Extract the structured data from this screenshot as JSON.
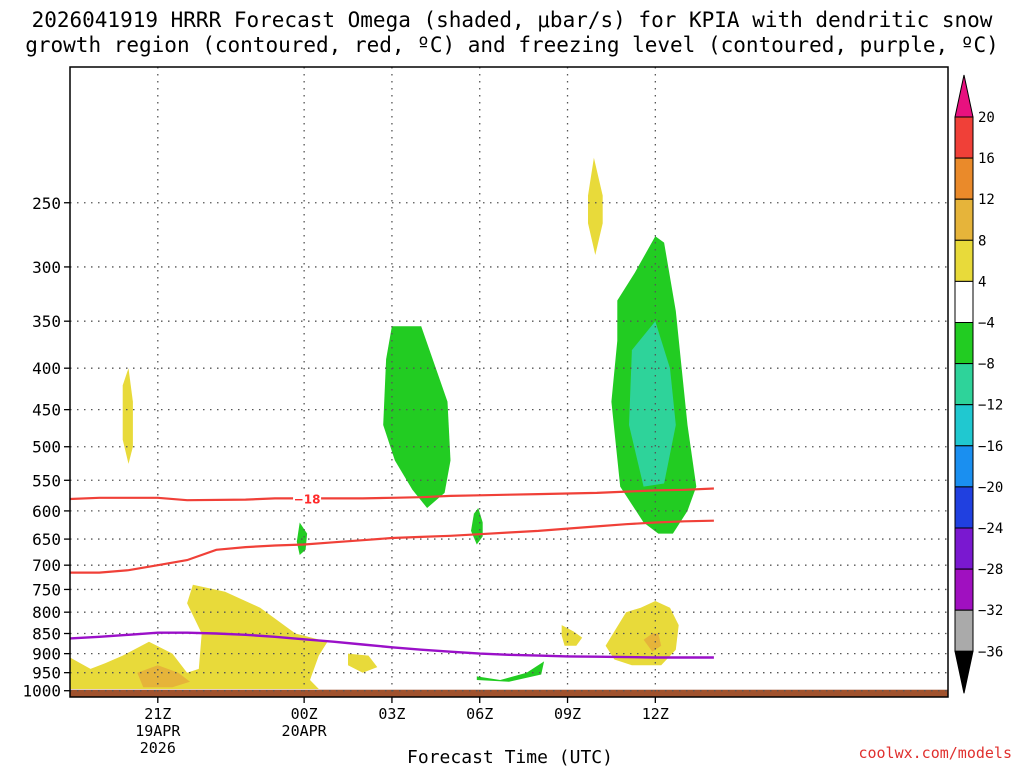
{
  "chart_data": {
    "type": "time-height-section",
    "title_line1": "2026041919 HRRR Forecast Omega (shaded, μbar/s) for KPIA with dendritic snow",
    "title_line2": "growth region (contoured, red, ºC) and freezing level (contoured, purple, ºC)",
    "xlabel": "Forecast Time (UTC)",
    "credit": "coolwx.com/models",
    "x_domain_hours": [
      -2,
      28
    ],
    "x_ticks": [
      {
        "hour": 1,
        "lines": [
          "21Z",
          "19APR",
          "2026"
        ]
      },
      {
        "hour": 6,
        "lines": [
          "00Z",
          "20APR"
        ]
      },
      {
        "hour": 9,
        "lines": [
          "03Z"
        ]
      },
      {
        "hour": 12,
        "lines": [
          "06Z"
        ]
      },
      {
        "hour": 15,
        "lines": [
          "09Z"
        ]
      },
      {
        "hour": 18,
        "lines": [
          "12Z"
        ]
      }
    ],
    "y_axis": {
      "units": "hPa",
      "top": 170,
      "bottom": 1018,
      "ticks": [
        250,
        300,
        350,
        400,
        450,
        500,
        550,
        600,
        650,
        700,
        750,
        800,
        850,
        900,
        950,
        1000
      ]
    },
    "colorbar": {
      "labels": [
        "20",
        "16",
        "12",
        "8",
        "4",
        "−4",
        "−8",
        "−12",
        "−16",
        "−20",
        "−24",
        "−28",
        "−32",
        "−36"
      ],
      "bins": [
        {
          "lo": 20,
          "hi": null,
          "color": "#e8117f"
        },
        {
          "lo": 16,
          "hi": 20,
          "color": "#f04038"
        },
        {
          "lo": 12,
          "hi": 16,
          "color": "#ea8a2a"
        },
        {
          "lo": 8,
          "hi": 12,
          "color": "#e6b43a"
        },
        {
          "lo": 4,
          "hi": 8,
          "color": "#e8da3a"
        },
        {
          "lo": -4,
          "hi": 4,
          "color": "#ffffff"
        },
        {
          "lo": -8,
          "hi": -4,
          "color": "#22cc22"
        },
        {
          "lo": -12,
          "hi": -8,
          "color": "#2ed39a"
        },
        {
          "lo": -16,
          "hi": -12,
          "color": "#20c8d0"
        },
        {
          "lo": -20,
          "hi": -16,
          "color": "#1a8ff0"
        },
        {
          "lo": -24,
          "hi": -20,
          "color": "#2040e0"
        },
        {
          "lo": -28,
          "hi": -24,
          "color": "#7a18d0"
        },
        {
          "lo": -32,
          "hi": -28,
          "color": "#a010c0"
        },
        {
          "lo": -36,
          "hi": -32,
          "color": "#aaaaaa"
        },
        {
          "lo": null,
          "hi": -36,
          "color": "#000000"
        }
      ]
    },
    "omega_regions": [
      {
        "name": "upward-motion-1",
        "color": "#e8da3a",
        "points": [
          [
            0,
            400
          ],
          [
            0.15,
            440
          ],
          [
            0.15,
            500
          ],
          [
            0,
            525
          ],
          [
            -0.2,
            490
          ],
          [
            -0.2,
            420
          ]
        ]
      },
      {
        "name": "upward-motion-2",
        "color": "#e8da3a",
        "points": [
          [
            15.9,
            220
          ],
          [
            16.2,
            245
          ],
          [
            16.2,
            265
          ],
          [
            15.95,
            290
          ],
          [
            15.7,
            265
          ],
          [
            15.7,
            245
          ]
        ]
      },
      {
        "name": "weak-ascent-1",
        "color": "#e8da3a",
        "points": [
          [
            -2,
            910
          ],
          [
            -1.3,
            940
          ],
          [
            -0.8,
            925
          ],
          [
            -0.2,
            905
          ],
          [
            0.7,
            870
          ],
          [
            1.5,
            900
          ],
          [
            2,
            950
          ],
          [
            2.4,
            940
          ],
          [
            2.5,
            850
          ],
          [
            2,
            780
          ],
          [
            2.2,
            740
          ],
          [
            3.3,
            755
          ],
          [
            4.5,
            790
          ],
          [
            5.7,
            850
          ],
          [
            6.8,
            870
          ],
          [
            6.5,
            905
          ],
          [
            6.2,
            970
          ],
          [
            6.5,
            995
          ],
          [
            -2,
            995
          ]
        ]
      },
      {
        "name": "weak-ascent-2",
        "color": "#e6b43a",
        "points": [
          [
            0.3,
            950
          ],
          [
            1,
            930
          ],
          [
            1.7,
            950
          ],
          [
            2.1,
            975
          ],
          [
            1.5,
            990
          ],
          [
            0.5,
            990
          ]
        ]
      },
      {
        "name": "weak-ascent-3",
        "color": "#e8da3a",
        "points": [
          [
            7.5,
            900
          ],
          [
            8.2,
            905
          ],
          [
            8.5,
            935
          ],
          [
            8,
            950
          ],
          [
            7.5,
            930
          ]
        ]
      },
      {
        "name": "weak-ascent-4",
        "color": "#e8da3a",
        "points": [
          [
            14.8,
            830
          ],
          [
            15.2,
            845
          ],
          [
            15.5,
            860
          ],
          [
            15.3,
            880
          ],
          [
            14.9,
            880
          ],
          [
            14.8,
            855
          ]
        ]
      },
      {
        "name": "weak-ascent-5",
        "color": "#e8da3a",
        "points": [
          [
            16.3,
            880
          ],
          [
            17,
            800
          ],
          [
            17.5,
            790
          ],
          [
            18,
            775
          ],
          [
            18.5,
            790
          ],
          [
            18.8,
            830
          ],
          [
            18.7,
            890
          ],
          [
            18.2,
            930
          ],
          [
            17.2,
            930
          ],
          [
            16.6,
            915
          ]
        ]
      },
      {
        "name": "weak-ascent-6",
        "color": "#e6b43a",
        "points": [
          [
            17.6,
            865
          ],
          [
            17.9,
            850
          ],
          [
            18.1,
            850
          ],
          [
            18.2,
            880
          ],
          [
            17.9,
            895
          ]
        ]
      },
      {
        "name": "descent-1",
        "color": "#22cc22",
        "points": [
          [
            9,
            355
          ],
          [
            10,
            355
          ],
          [
            10.9,
            440
          ],
          [
            11,
            520
          ],
          [
            10.8,
            570
          ],
          [
            10.2,
            595
          ],
          [
            9.7,
            565
          ],
          [
            9.1,
            520
          ],
          [
            8.7,
            470
          ],
          [
            8.8,
            390
          ]
        ]
      },
      {
        "name": "descent-2",
        "color": "#22cc22",
        "points": [
          [
            11.95,
            595
          ],
          [
            12.1,
            620
          ],
          [
            12.1,
            645
          ],
          [
            11.9,
            660
          ],
          [
            11.7,
            635
          ],
          [
            11.8,
            605
          ]
        ]
      },
      {
        "name": "descent-3",
        "color": "#22cc22",
        "points": [
          [
            5.85,
            620
          ],
          [
            6.1,
            640
          ],
          [
            6.05,
            670
          ],
          [
            5.85,
            680
          ],
          [
            5.75,
            655
          ]
        ]
      },
      {
        "name": "descent-4",
        "color": "#22cc22",
        "points": [
          [
            11.9,
            960
          ],
          [
            12.7,
            970
          ],
          [
            13.6,
            950
          ],
          [
            14.2,
            920
          ],
          [
            14.1,
            955
          ],
          [
            13,
            975
          ],
          [
            11.9,
            970
          ]
        ]
      },
      {
        "name": "descent-5",
        "color": "#22cc22",
        "points": [
          [
            16.7,
            330
          ],
          [
            17.3,
            305
          ],
          [
            18,
            275
          ],
          [
            18.3,
            280
          ],
          [
            18.7,
            340
          ],
          [
            19.1,
            470
          ],
          [
            19.4,
            560
          ],
          [
            19.1,
            600
          ],
          [
            18.6,
            640
          ],
          [
            18.1,
            640
          ],
          [
            17.6,
            620
          ],
          [
            16.8,
            560
          ],
          [
            16.5,
            440
          ],
          [
            16.7,
            370
          ]
        ]
      },
      {
        "name": "descent-6",
        "color": "#2ed39a",
        "points": [
          [
            17.2,
            380
          ],
          [
            18,
            350
          ],
          [
            18.5,
            400
          ],
          [
            18.7,
            470
          ],
          [
            18.3,
            555
          ],
          [
            17.6,
            560
          ],
          [
            17.1,
            470
          ]
        ]
      }
    ],
    "dgz_lines": [
      {
        "name": "dgz-upper",
        "label": "−18",
        "color": "#f04038",
        "points": [
          [
            -2,
            580
          ],
          [
            -1,
            578
          ],
          [
            0,
            578
          ],
          [
            1,
            578
          ],
          [
            2,
            582
          ],
          [
            4,
            581
          ],
          [
            5,
            579
          ],
          [
            6,
            579
          ],
          [
            7,
            579
          ],
          [
            8,
            579
          ],
          [
            9,
            578
          ],
          [
            10,
            577
          ],
          [
            11,
            575
          ],
          [
            12,
            574
          ],
          [
            13,
            573
          ],
          [
            14,
            572
          ],
          [
            15,
            571
          ],
          [
            16,
            570
          ],
          [
            17,
            568
          ],
          [
            18,
            566
          ],
          [
            19,
            565
          ],
          [
            20,
            563
          ]
        ]
      },
      {
        "name": "dgz-lower",
        "color": "#f04038",
        "points": [
          [
            -2,
            715
          ],
          [
            -1,
            715
          ],
          [
            0,
            710
          ],
          [
            1,
            700
          ],
          [
            2,
            690
          ],
          [
            3,
            670
          ],
          [
            4,
            665
          ],
          [
            5,
            662
          ],
          [
            6,
            660
          ],
          [
            7,
            656
          ],
          [
            8,
            652
          ],
          [
            9,
            648
          ],
          [
            10,
            646
          ],
          [
            11,
            644
          ],
          [
            12,
            641
          ],
          [
            13,
            638
          ],
          [
            14,
            635
          ],
          [
            15,
            631
          ],
          [
            16,
            627
          ],
          [
            17,
            623
          ],
          [
            18,
            620
          ],
          [
            19,
            618
          ],
          [
            20,
            617
          ]
        ]
      }
    ],
    "freezing_level": {
      "name": "freezing-level",
      "color": "#9a10c8",
      "points": [
        [
          -2,
          862
        ],
        [
          -1,
          858
        ],
        [
          0,
          853
        ],
        [
          1,
          848
        ],
        [
          2,
          848
        ],
        [
          3,
          850
        ],
        [
          4,
          853
        ],
        [
          5,
          858
        ],
        [
          6,
          864
        ],
        [
          7,
          870
        ],
        [
          8,
          877
        ],
        [
          9,
          884
        ],
        [
          10,
          890
        ],
        [
          11,
          895
        ],
        [
          12,
          900
        ],
        [
          13,
          903
        ],
        [
          14,
          905
        ],
        [
          15,
          907
        ],
        [
          16,
          908
        ],
        [
          17,
          909
        ],
        [
          18,
          910
        ],
        [
          19,
          910
        ],
        [
          20,
          910
        ]
      ]
    }
  }
}
